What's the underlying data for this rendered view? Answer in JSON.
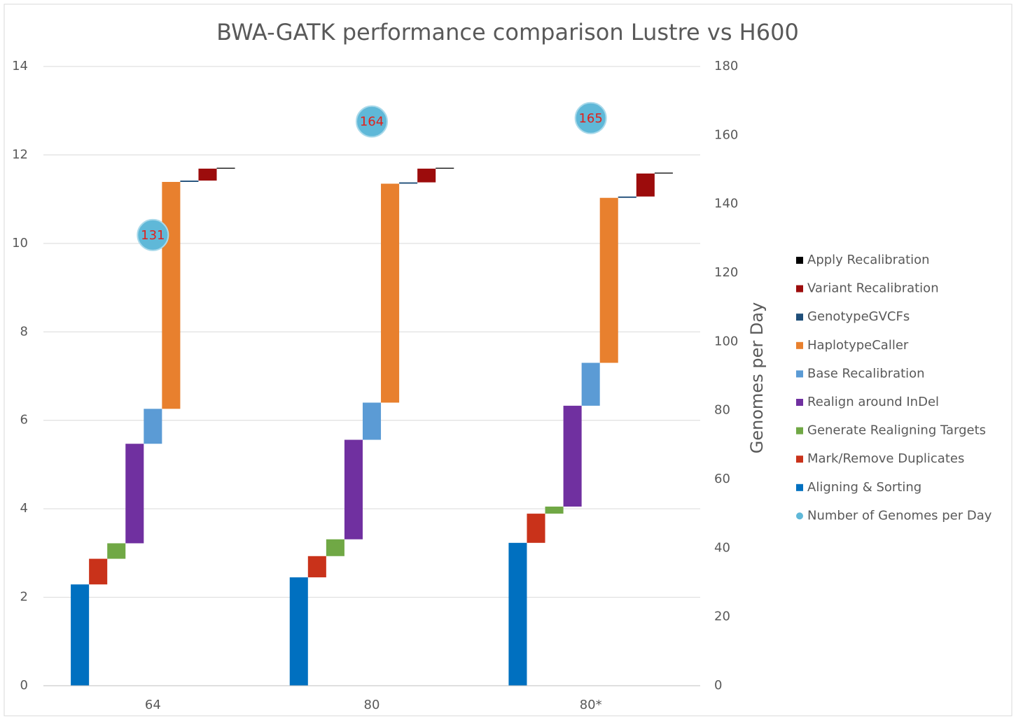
{
  "chart_data": {
    "type": "waterfall",
    "title": "BWA-GATK performance comparison Lustre vs H600",
    "y2_label": "Genomes per Day",
    "categories": [
      "64",
      "80",
      "80*"
    ],
    "ylim": [
      0,
      14
    ],
    "yticks": [
      0,
      2,
      4,
      6,
      8,
      10,
      12,
      14
    ],
    "y2lim": [
      0,
      180
    ],
    "y2ticks": [
      0,
      20,
      40,
      60,
      80,
      100,
      120,
      140,
      160,
      180
    ],
    "grid": true,
    "legend": "right",
    "series": [
      {
        "name": "Aligning & Sorting",
        "color": "#0070c0",
        "values": [
          2.29,
          2.45,
          3.23
        ]
      },
      {
        "name": "Mark/Remove Duplicates",
        "color": "#c9321a",
        "values": [
          0.58,
          0.48,
          0.66
        ]
      },
      {
        "name": "Generate Realigning Targets",
        "color": "#70a845",
        "values": [
          0.35,
          0.38,
          0.16
        ]
      },
      {
        "name": "Realign around InDel",
        "color": "#7030a0",
        "values": [
          2.25,
          2.25,
          2.28
        ]
      },
      {
        "name": "Base Recalibration",
        "color": "#5b9bd5",
        "values": [
          0.79,
          0.84,
          0.97
        ]
      },
      {
        "name": "HaplotypeCaller",
        "color": "#e8802e",
        "values": [
          5.13,
          4.95,
          3.73
        ]
      },
      {
        "name": "GenotypeGVCFs",
        "color": "#1f4e79",
        "values": [
          0.03,
          0.03,
          0.03
        ]
      },
      {
        "name": "Variant Recalibration",
        "color": "#9c0c0c",
        "values": [
          0.27,
          0.31,
          0.52
        ]
      },
      {
        "name": "Apply Recalibration",
        "color": "#000000",
        "values": [
          0.02,
          0.02,
          0.02
        ]
      },
      {
        "name": "Number of Genomes per Day",
        "color": "#5fb8d8",
        "label_color": "#e0201b",
        "type": "scatter",
        "axis": "y2",
        "values": [
          131,
          164,
          165
        ]
      }
    ]
  }
}
